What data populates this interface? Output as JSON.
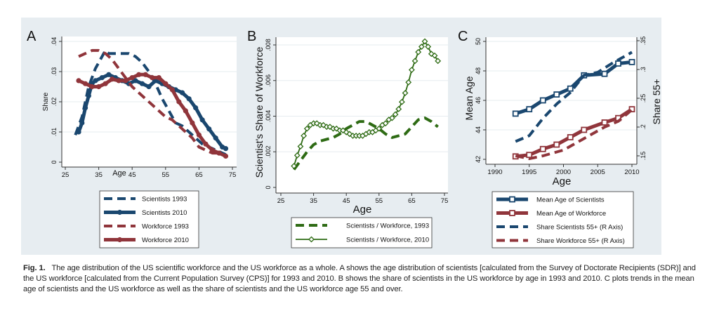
{
  "colors": {
    "blue": "#1a476f",
    "red": "#90353b",
    "green": "#2e6b14"
  },
  "chart_data": [
    {
      "panel": "A",
      "type": "line",
      "xlabel": "Age",
      "ylabel": "Share",
      "xlim": [
        25,
        75
      ],
      "ylim": [
        0,
        0.04
      ],
      "xticks": [
        "25",
        "35",
        "45",
        "55",
        "65",
        "75"
      ],
      "yticks": [
        "0",
        ".01",
        ".02",
        ".03",
        ".04"
      ],
      "legend": "below",
      "series": [
        {
          "name": "Scientists 1993",
          "color": "blue",
          "style": "dash",
          "x": [
            28,
            30,
            32,
            34,
            36,
            37,
            38,
            40,
            42,
            44,
            46,
            48,
            50,
            52,
            54,
            56,
            58,
            60,
            62,
            64,
            66,
            68,
            70,
            72,
            73
          ],
          "y": [
            0.009,
            0.015,
            0.025,
            0.031,
            0.035,
            0.037,
            0.036,
            0.036,
            0.036,
            0.036,
            0.035,
            0.033,
            0.03,
            0.026,
            0.021,
            0.017,
            0.013,
            0.012,
            0.01,
            0.008,
            0.006,
            0.005,
            0.004,
            0.003,
            0.0025
          ]
        },
        {
          "name": "Scientists 2010",
          "color": "blue",
          "style": "solid-dot",
          "x": [
            29,
            30,
            31,
            32,
            33,
            34,
            36,
            38,
            40,
            42,
            44,
            46,
            48,
            50,
            52,
            54,
            56,
            58,
            60,
            62,
            64,
            66,
            68,
            70,
            72,
            73
          ],
          "y": [
            0.01,
            0.013,
            0.018,
            0.022,
            0.026,
            0.027,
            0.028,
            0.029,
            0.028,
            0.027,
            0.026,
            0.027,
            0.026,
            0.025,
            0.027,
            0.026,
            0.025,
            0.024,
            0.023,
            0.021,
            0.018,
            0.014,
            0.011,
            0.008,
            0.005,
            0.0045
          ]
        },
        {
          "name": "Workforce 1993",
          "color": "red",
          "style": "dash",
          "x": [
            29,
            31,
            33,
            35,
            37,
            39,
            41,
            43,
            45,
            47,
            49,
            51,
            53,
            55,
            57,
            59,
            61,
            63,
            65,
            67,
            69,
            71,
            73
          ],
          "y": [
            0.035,
            0.036,
            0.037,
            0.037,
            0.036,
            0.034,
            0.031,
            0.028,
            0.025,
            0.023,
            0.021,
            0.019,
            0.017,
            0.015,
            0.014,
            0.012,
            0.01,
            0.008,
            0.005,
            0.004,
            0.003,
            0.003,
            0.002
          ]
        },
        {
          "name": "Workforce 2010",
          "color": "red",
          "style": "solid-dot",
          "x": [
            29,
            31,
            33,
            35,
            37,
            39,
            41,
            43,
            45,
            47,
            49,
            51,
            53,
            55,
            57,
            59,
            61,
            63,
            65,
            67,
            69,
            71,
            73
          ],
          "y": [
            0.027,
            0.026,
            0.025,
            0.025,
            0.026,
            0.0275,
            0.027,
            0.027,
            0.028,
            0.029,
            0.029,
            0.028,
            0.028,
            0.026,
            0.024,
            0.02,
            0.017,
            0.013,
            0.009,
            0.006,
            0.004,
            0.003,
            0.002
          ]
        }
      ]
    },
    {
      "panel": "B",
      "type": "line",
      "xlabel": "Age",
      "ylabel": "Scientist's Share of Workforce",
      "xlim": [
        25,
        75
      ],
      "ylim": [
        0,
        0.008
      ],
      "xticks": [
        "25",
        "35",
        "45",
        "55",
        "65",
        "75"
      ],
      "yticks": [
        "0",
        ".002",
        ".004",
        ".006",
        ".008"
      ],
      "legend": "below",
      "series": [
        {
          "name": "Scientists / Workforce, 1993",
          "color": "green",
          "style": "dash",
          "x": [
            29,
            31,
            33,
            35,
            37,
            39,
            41,
            43,
            45,
            47,
            49,
            51,
            53,
            55,
            57,
            59,
            61,
            63,
            65,
            67,
            69,
            71,
            73
          ],
          "y": [
            0.001,
            0.0015,
            0.002,
            0.0024,
            0.0026,
            0.0027,
            0.0028,
            0.003,
            0.0033,
            0.0035,
            0.0037,
            0.0037,
            0.0035,
            0.0033,
            0.003,
            0.0028,
            0.0029,
            0.003,
            0.0034,
            0.0038,
            0.0039,
            0.0037,
            0.0034
          ]
        },
        {
          "name": "Scientists / Workforce, 2010",
          "color": "green",
          "style": "solid-diamond",
          "x": [
            29,
            30,
            31,
            32,
            33,
            34,
            35,
            36,
            37,
            38,
            39,
            40,
            41,
            42,
            43,
            44,
            45,
            46,
            47,
            48,
            49,
            50,
            51,
            52,
            53,
            54,
            55,
            56,
            57,
            58,
            59,
            60,
            61,
            62,
            63,
            64,
            65,
            66,
            67,
            68,
            69,
            70,
            71,
            72,
            73
          ],
          "y": [
            0.0012,
            0.0018,
            0.0023,
            0.0029,
            0.0033,
            0.0035,
            0.0036,
            0.0036,
            0.0035,
            0.0035,
            0.0034,
            0.0034,
            0.0033,
            0.0033,
            0.0032,
            0.0032,
            0.0031,
            0.003,
            0.0029,
            0.0029,
            0.0029,
            0.0029,
            0.003,
            0.0031,
            0.0031,
            0.0032,
            0.0033,
            0.0035,
            0.0036,
            0.0038,
            0.0039,
            0.0041,
            0.0044,
            0.0048,
            0.0053,
            0.0059,
            0.0066,
            0.0071,
            0.0076,
            0.0079,
            0.0082,
            0.0079,
            0.0075,
            0.0074,
            0.0071
          ]
        }
      ]
    },
    {
      "panel": "C",
      "type": "line",
      "xlabel": "Age",
      "ylabel": "Mean Age",
      "y2label": "Share 55+",
      "xlim": [
        1990,
        2010
      ],
      "ylim": [
        42,
        50
      ],
      "y2lim": [
        0.15,
        0.35
      ],
      "xticks": [
        "1990",
        "1995",
        "2000",
        "2005",
        "2010"
      ],
      "yticks": [
        "42",
        "44",
        "46",
        "48",
        "50"
      ],
      "y2ticks": [
        ".15",
        ".2",
        ".25",
        ".3",
        ".35"
      ],
      "legend": "below",
      "series": [
        {
          "name": "Mean Age of Scientists",
          "color": "blue",
          "style": "solid-square",
          "axis": "left",
          "x": [
            1993,
            1995,
            1997,
            1999,
            2001,
            2003,
            2006,
            2008,
            2010
          ],
          "y": [
            45.1,
            45.4,
            46.0,
            46.4,
            46.8,
            47.7,
            47.8,
            48.5,
            48.6
          ]
        },
        {
          "name": "Mean Age of Workforce",
          "color": "red",
          "style": "solid-square",
          "axis": "left",
          "x": [
            1993,
            1995,
            1997,
            1999,
            2001,
            2003,
            2006,
            2008,
            2010
          ],
          "y": [
            42.2,
            42.3,
            42.7,
            43.0,
            43.5,
            44.0,
            44.5,
            44.8,
            45.4
          ]
        },
        {
          "name": "Share Scientists 55+ (R Axis)",
          "color": "blue",
          "style": "dash",
          "axis": "right",
          "x": [
            1993,
            1995,
            1997,
            1999,
            2001,
            2003,
            2005,
            2007,
            2010
          ],
          "y": [
            0.175,
            0.185,
            0.215,
            0.24,
            0.26,
            0.29,
            0.295,
            0.31,
            0.33
          ]
        },
        {
          "name": "Share Workforce 55+ (R Axis)",
          "color": "red",
          "style": "dash",
          "axis": "right",
          "x": [
            1993,
            1995,
            1997,
            2000,
            2003,
            2006,
            2008,
            2010
          ],
          "y": [
            0.15,
            0.145,
            0.15,
            0.16,
            0.18,
            0.2,
            0.21,
            0.23
          ]
        }
      ]
    }
  ],
  "caption": {
    "label": "Fig. 1.",
    "text": "The age distribution of the US scientific workforce and the US workforce as a whole. A shows the age distribution of scientists [calculated from the Survey of Doctorate Recipients (SDR)] and the US workforce [calculated from the Current Population Survey (CPS)] for 1993 and 2010. B shows the share of scientists in the US workforce by age in 1993 and 2010. C plots trends in the mean age of scientists and the US workforce as well as the share of scientists and the US workforce age 55 and over."
  }
}
